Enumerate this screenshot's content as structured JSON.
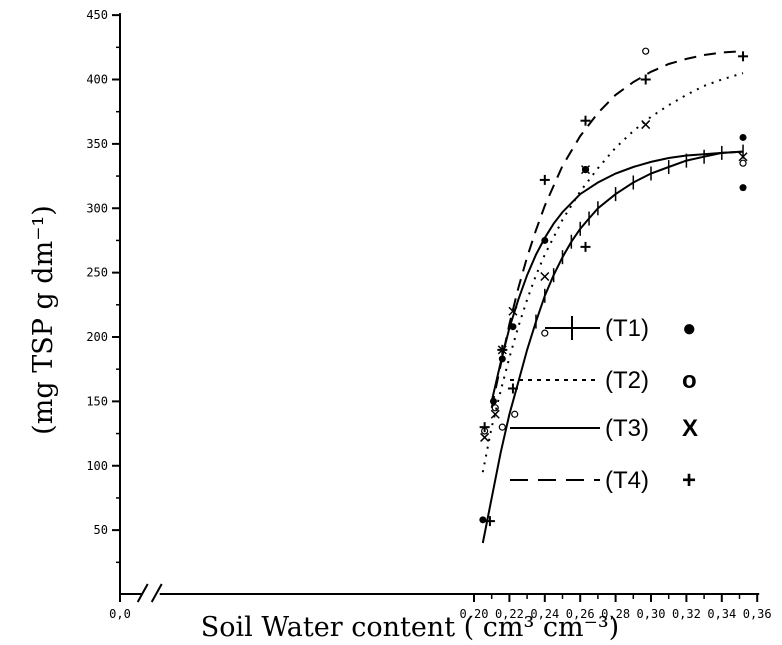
{
  "chart_data": {
    "type": "scatter",
    "title": "",
    "xlabel": "Soil Water content ( cm³ cm⁻³)",
    "ylabel": "(mg TSP g dm⁻¹)",
    "xlim": [
      0,
      0.36
    ],
    "ylim": [
      30,
      450
    ],
    "axis_break": [
      0.01,
      0.2
    ],
    "grid": false,
    "legend_position": "right",
    "x_ticks": [
      "0,0",
      "0,20",
      "0,22",
      "0,24",
      "0,26",
      "0,28",
      "0,30",
      "0,32",
      "0,34",
      "0,36"
    ],
    "x_tick_values": [
      0,
      0.2,
      0.22,
      0.24,
      0.26,
      0.28,
      0.3,
      0.32,
      0.34,
      0.36
    ],
    "y_ticks": [
      "50",
      "100",
      "150",
      "200",
      "250",
      "300",
      "350",
      "400",
      "450"
    ],
    "y_tick_values": [
      50,
      100,
      150,
      200,
      250,
      300,
      350,
      400,
      450
    ],
    "series": [
      {
        "name": "(T1)",
        "marker_symbol": "●",
        "marker": "dot",
        "line": "solid-cross",
        "points": [
          [
            0.205,
            58
          ],
          [
            0.211,
            150
          ],
          [
            0.216,
            183
          ],
          [
            0.222,
            208
          ],
          [
            0.24,
            275
          ],
          [
            0.263,
            330
          ],
          [
            0.352,
            355
          ],
          [
            0.352,
            316
          ]
        ],
        "curve": [
          [
            0.205,
            40
          ],
          [
            0.21,
            75
          ],
          [
            0.215,
            110
          ],
          [
            0.22,
            140
          ],
          [
            0.225,
            165
          ],
          [
            0.23,
            190
          ],
          [
            0.235,
            212
          ],
          [
            0.24,
            232
          ],
          [
            0.245,
            248
          ],
          [
            0.25,
            262
          ],
          [
            0.255,
            274
          ],
          [
            0.26,
            284
          ],
          [
            0.265,
            292
          ],
          [
            0.27,
            300
          ],
          [
            0.28,
            311
          ],
          [
            0.29,
            320
          ],
          [
            0.3,
            327
          ],
          [
            0.31,
            332
          ],
          [
            0.32,
            337
          ],
          [
            0.33,
            340
          ],
          [
            0.34,
            343
          ],
          [
            0.352,
            344
          ]
        ]
      },
      {
        "name": "(T2)",
        "marker_symbol": "o",
        "marker": "circle",
        "line": "dotted",
        "points": [
          [
            0.206,
            127
          ],
          [
            0.212,
            145
          ],
          [
            0.216,
            130
          ],
          [
            0.223,
            140
          ],
          [
            0.24,
            203
          ],
          [
            0.263,
            330
          ],
          [
            0.297,
            422
          ],
          [
            0.352,
            335
          ]
        ],
        "curve": [
          [
            0.205,
            95
          ],
          [
            0.21,
            130
          ],
          [
            0.215,
            158
          ],
          [
            0.22,
            184
          ],
          [
            0.225,
            208
          ],
          [
            0.23,
            229
          ],
          [
            0.235,
            248
          ],
          [
            0.24,
            264
          ],
          [
            0.25,
            291
          ],
          [
            0.26,
            313
          ],
          [
            0.27,
            331
          ],
          [
            0.28,
            347
          ],
          [
            0.29,
            360
          ],
          [
            0.3,
            371
          ],
          [
            0.31,
            380
          ],
          [
            0.32,
            388
          ],
          [
            0.33,
            395
          ],
          [
            0.34,
            400
          ],
          [
            0.352,
            405
          ]
        ]
      },
      {
        "name": "(T3)",
        "marker_symbol": "X",
        "marker": "x",
        "line": "solid",
        "points": [
          [
            0.206,
            122
          ],
          [
            0.212,
            140
          ],
          [
            0.216,
            190
          ],
          [
            0.222,
            220
          ],
          [
            0.24,
            247
          ],
          [
            0.263,
            330
          ],
          [
            0.297,
            365
          ],
          [
            0.352,
            340
          ]
        ],
        "curve": [
          [
            0.21,
            150
          ],
          [
            0.215,
            180
          ],
          [
            0.22,
            207
          ],
          [
            0.225,
            229
          ],
          [
            0.23,
            248
          ],
          [
            0.235,
            264
          ],
          [
            0.24,
            277
          ],
          [
            0.245,
            288
          ],
          [
            0.25,
            297
          ],
          [
            0.255,
            304
          ],
          [
            0.26,
            311
          ],
          [
            0.27,
            320
          ],
          [
            0.28,
            327
          ],
          [
            0.29,
            332
          ],
          [
            0.3,
            336
          ],
          [
            0.31,
            339
          ],
          [
            0.32,
            341
          ],
          [
            0.33,
            342
          ],
          [
            0.34,
            343
          ],
          [
            0.352,
            344
          ]
        ]
      },
      {
        "name": "(T4)",
        "marker_symbol": "+",
        "marker": "plus",
        "line": "dashed",
        "points": [
          [
            0.206,
            130
          ],
          [
            0.209,
            57
          ],
          [
            0.216,
            190
          ],
          [
            0.222,
            160
          ],
          [
            0.24,
            322
          ],
          [
            0.263,
            368
          ],
          [
            0.263,
            270
          ],
          [
            0.297,
            400
          ],
          [
            0.352,
            418
          ]
        ],
        "curve": [
          [
            0.21,
            145
          ],
          [
            0.215,
            178
          ],
          [
            0.22,
            210
          ],
          [
            0.225,
            238
          ],
          [
            0.23,
            262
          ],
          [
            0.235,
            283
          ],
          [
            0.24,
            302
          ],
          [
            0.25,
            333
          ],
          [
            0.26,
            356
          ],
          [
            0.27,
            374
          ],
          [
            0.28,
            388
          ],
          [
            0.29,
            398
          ],
          [
            0.3,
            406
          ],
          [
            0.31,
            412
          ],
          [
            0.32,
            416
          ],
          [
            0.33,
            419
          ],
          [
            0.34,
            421
          ],
          [
            0.352,
            422
          ]
        ]
      }
    ]
  }
}
